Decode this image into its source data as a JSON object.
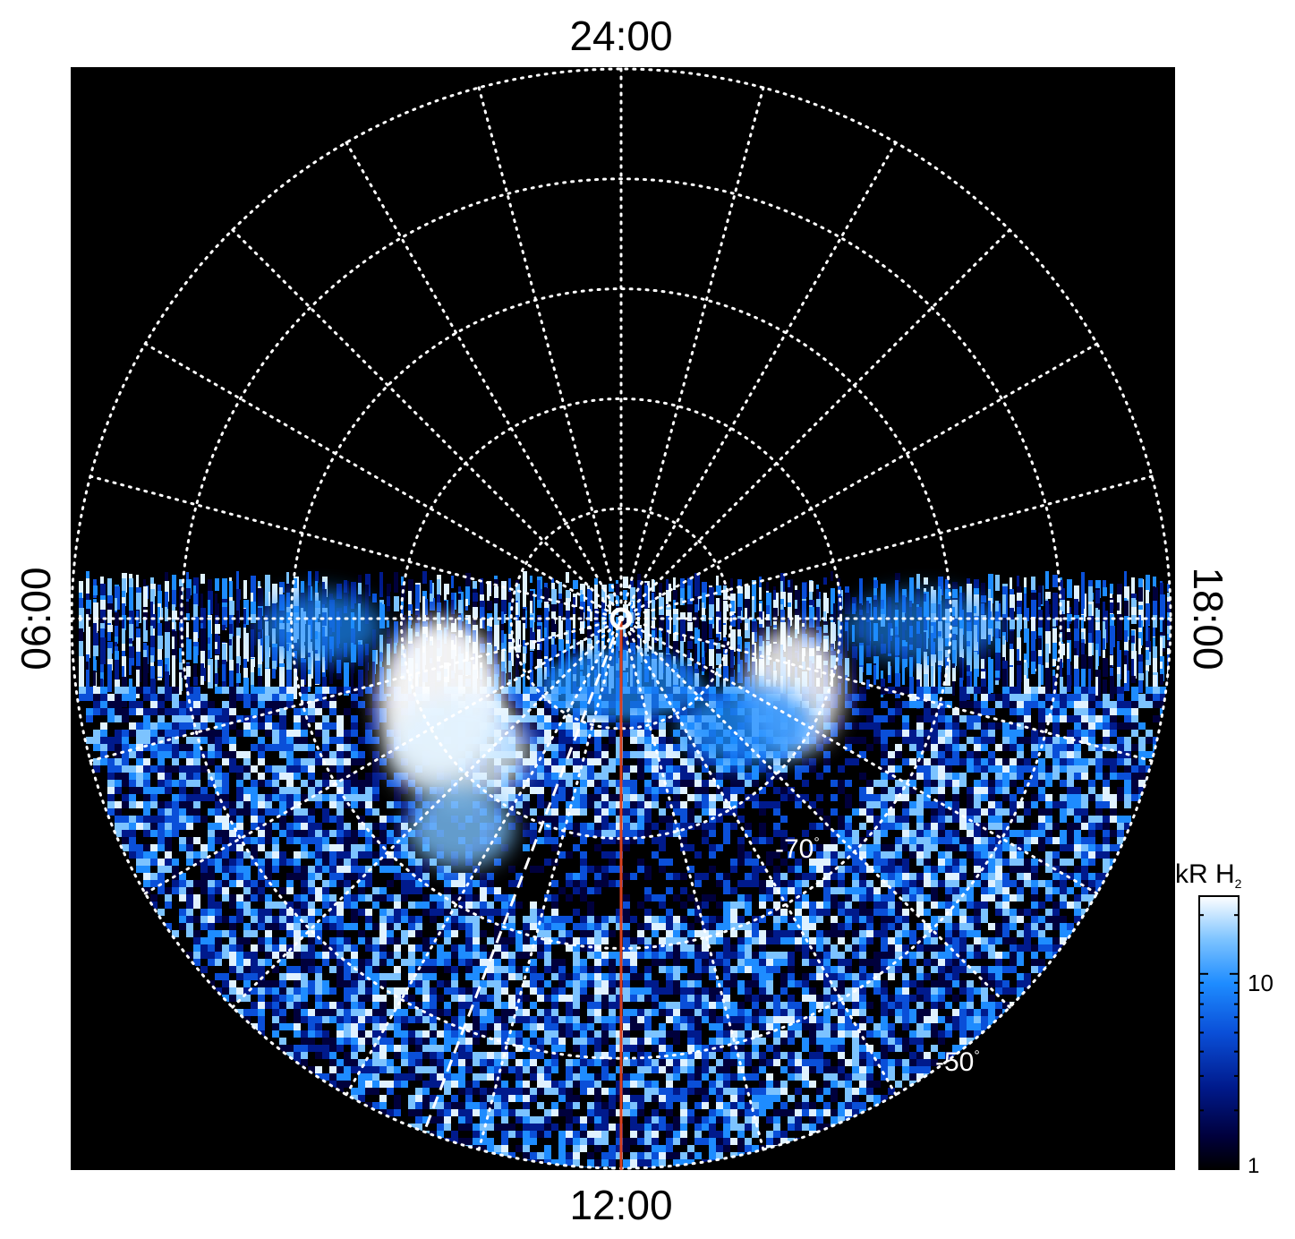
{
  "chart_data": {
    "type": "heatmap",
    "projection": "polar",
    "local_time_labels": {
      "top": "24:00",
      "bottom": "12:00",
      "left": "06:00",
      "right": "18:00"
    },
    "latitude_labels": [
      "-70",
      "-50"
    ],
    "degree_symbol": "°",
    "latitude_rings_deg": [
      -80,
      -70,
      -60,
      -50,
      -40
    ],
    "local_time_meridians_hours": [
      0,
      1,
      2,
      3,
      4,
      5,
      6,
      7,
      8,
      9,
      10,
      11,
      12,
      13,
      14,
      15,
      16,
      17,
      18,
      19,
      20,
      21,
      22,
      23
    ],
    "colorbar": {
      "unit": "kR H",
      "unit_subscript": "2",
      "scale": "log",
      "range": [
        1,
        25
      ],
      "tick_labels": [
        "10",
        "1"
      ],
      "tick_values": [
        10,
        1
      ]
    },
    "grid": true,
    "colors": {
      "background": "#000000",
      "grid": "#ffffff",
      "meridian_line": "#d9411e",
      "dashed_line": "#ffffff",
      "colormap": [
        "#000000",
        "#00003c",
        "#001a8c",
        "#0a4fd8",
        "#1e8cff",
        "#7cc3ff",
        "#e0f2ff",
        "#ffffff"
      ]
    },
    "features": {
      "observed_region": "southern half of the polar plot (between 06:00 and 18:00 through 12:00)",
      "bright_emission_dawn": "bright white emission near -75° latitude around 07:00–08:00 local time",
      "bright_emission_dusk": "bright emission near -75° latitude around 16:00–17:00 local time",
      "red_line_local_time": "12:00",
      "dashed_line_local_time": "about 10:30"
    }
  }
}
